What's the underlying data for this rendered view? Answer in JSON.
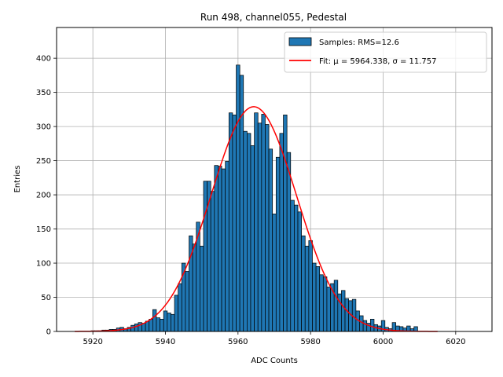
{
  "chart_data": {
    "type": "bar",
    "title": "Run 498, channel055, Pedestal",
    "xlabel": "ADC Counts",
    "ylabel": "Entries",
    "xlim": [
      5910,
      6030
    ],
    "ylim": [
      0,
      445
    ],
    "xticks": [
      5920,
      5940,
      5960,
      5980,
      6000,
      6020
    ],
    "yticks": [
      0,
      50,
      100,
      150,
      200,
      250,
      300,
      350,
      400
    ],
    "grid": true,
    "legend_position": "top-right",
    "bin_width": 1,
    "histogram": {
      "name": "Samples: RMS=12.6",
      "color": "#1f77b4",
      "edgecolor": "#000000",
      "bins": [
        {
          "x": 5920,
          "count": 1
        },
        {
          "x": 5921,
          "count": 1
        },
        {
          "x": 5922,
          "count": 1
        },
        {
          "x": 5923,
          "count": 2
        },
        {
          "x": 5924,
          "count": 2
        },
        {
          "x": 5925,
          "count": 3
        },
        {
          "x": 5926,
          "count": 3
        },
        {
          "x": 5927,
          "count": 5
        },
        {
          "x": 5928,
          "count": 6
        },
        {
          "x": 5929,
          "count": 4
        },
        {
          "x": 5930,
          "count": 6
        },
        {
          "x": 5931,
          "count": 9
        },
        {
          "x": 5932,
          "count": 11
        },
        {
          "x": 5933,
          "count": 13
        },
        {
          "x": 5934,
          "count": 12
        },
        {
          "x": 5935,
          "count": 15
        },
        {
          "x": 5936,
          "count": 18
        },
        {
          "x": 5937,
          "count": 32
        },
        {
          "x": 5938,
          "count": 20
        },
        {
          "x": 5939,
          "count": 18
        },
        {
          "x": 5940,
          "count": 30
        },
        {
          "x": 5941,
          "count": 27
        },
        {
          "x": 5942,
          "count": 25
        },
        {
          "x": 5943,
          "count": 53
        },
        {
          "x": 5944,
          "count": 70
        },
        {
          "x": 5945,
          "count": 100
        },
        {
          "x": 5946,
          "count": 88
        },
        {
          "x": 5947,
          "count": 140
        },
        {
          "x": 5948,
          "count": 128
        },
        {
          "x": 5949,
          "count": 160
        },
        {
          "x": 5950,
          "count": 125
        },
        {
          "x": 5951,
          "count": 220
        },
        {
          "x": 5952,
          "count": 220
        },
        {
          "x": 5953,
          "count": 205
        },
        {
          "x": 5954,
          "count": 243
        },
        {
          "x": 5955,
          "count": 242
        },
        {
          "x": 5956,
          "count": 238
        },
        {
          "x": 5957,
          "count": 249
        },
        {
          "x": 5958,
          "count": 320
        },
        {
          "x": 5959,
          "count": 317
        },
        {
          "x": 5960,
          "count": 390
        },
        {
          "x": 5961,
          "count": 375
        },
        {
          "x": 5962,
          "count": 293
        },
        {
          "x": 5963,
          "count": 290
        },
        {
          "x": 5964,
          "count": 272
        },
        {
          "x": 5965,
          "count": 320
        },
        {
          "x": 5966,
          "count": 305
        },
        {
          "x": 5967,
          "count": 318
        },
        {
          "x": 5968,
          "count": 303
        },
        {
          "x": 5969,
          "count": 267
        },
        {
          "x": 5970,
          "count": 172
        },
        {
          "x": 5971,
          "count": 255
        },
        {
          "x": 5972,
          "count": 290
        },
        {
          "x": 5973,
          "count": 317
        },
        {
          "x": 5974,
          "count": 262
        },
        {
          "x": 5975,
          "count": 192
        },
        {
          "x": 5976,
          "count": 185
        },
        {
          "x": 5977,
          "count": 175
        },
        {
          "x": 5978,
          "count": 140
        },
        {
          "x": 5979,
          "count": 125
        },
        {
          "x": 5980,
          "count": 133
        },
        {
          "x": 5981,
          "count": 100
        },
        {
          "x": 5982,
          "count": 95
        },
        {
          "x": 5983,
          "count": 83
        },
        {
          "x": 5984,
          "count": 80
        },
        {
          "x": 5985,
          "count": 65
        },
        {
          "x": 5986,
          "count": 70
        },
        {
          "x": 5987,
          "count": 75
        },
        {
          "x": 5988,
          "count": 55
        },
        {
          "x": 5989,
          "count": 60
        },
        {
          "x": 5990,
          "count": 48
        },
        {
          "x": 5991,
          "count": 45
        },
        {
          "x": 5992,
          "count": 47
        },
        {
          "x": 5993,
          "count": 30
        },
        {
          "x": 5994,
          "count": 23
        },
        {
          "x": 5995,
          "count": 16
        },
        {
          "x": 5996,
          "count": 12
        },
        {
          "x": 5997,
          "count": 18
        },
        {
          "x": 5998,
          "count": 10
        },
        {
          "x": 5999,
          "count": 8
        },
        {
          "x": 6000,
          "count": 16
        },
        {
          "x": 6001,
          "count": 6
        },
        {
          "x": 6002,
          "count": 4
        },
        {
          "x": 6003,
          "count": 13
        },
        {
          "x": 6004,
          "count": 8
        },
        {
          "x": 6005,
          "count": 7
        },
        {
          "x": 6006,
          "count": 5
        },
        {
          "x": 6007,
          "count": 8
        },
        {
          "x": 6008,
          "count": 4
        },
        {
          "x": 6009,
          "count": 7
        }
      ]
    },
    "fit": {
      "name": "Fit: μ = 5964.338, σ = 11.757",
      "type": "gaussian",
      "mu": 5964.338,
      "sigma": 11.757,
      "amplitude": 329,
      "x_range": [
        5915,
        6015
      ],
      "color": "#ff0000"
    }
  }
}
